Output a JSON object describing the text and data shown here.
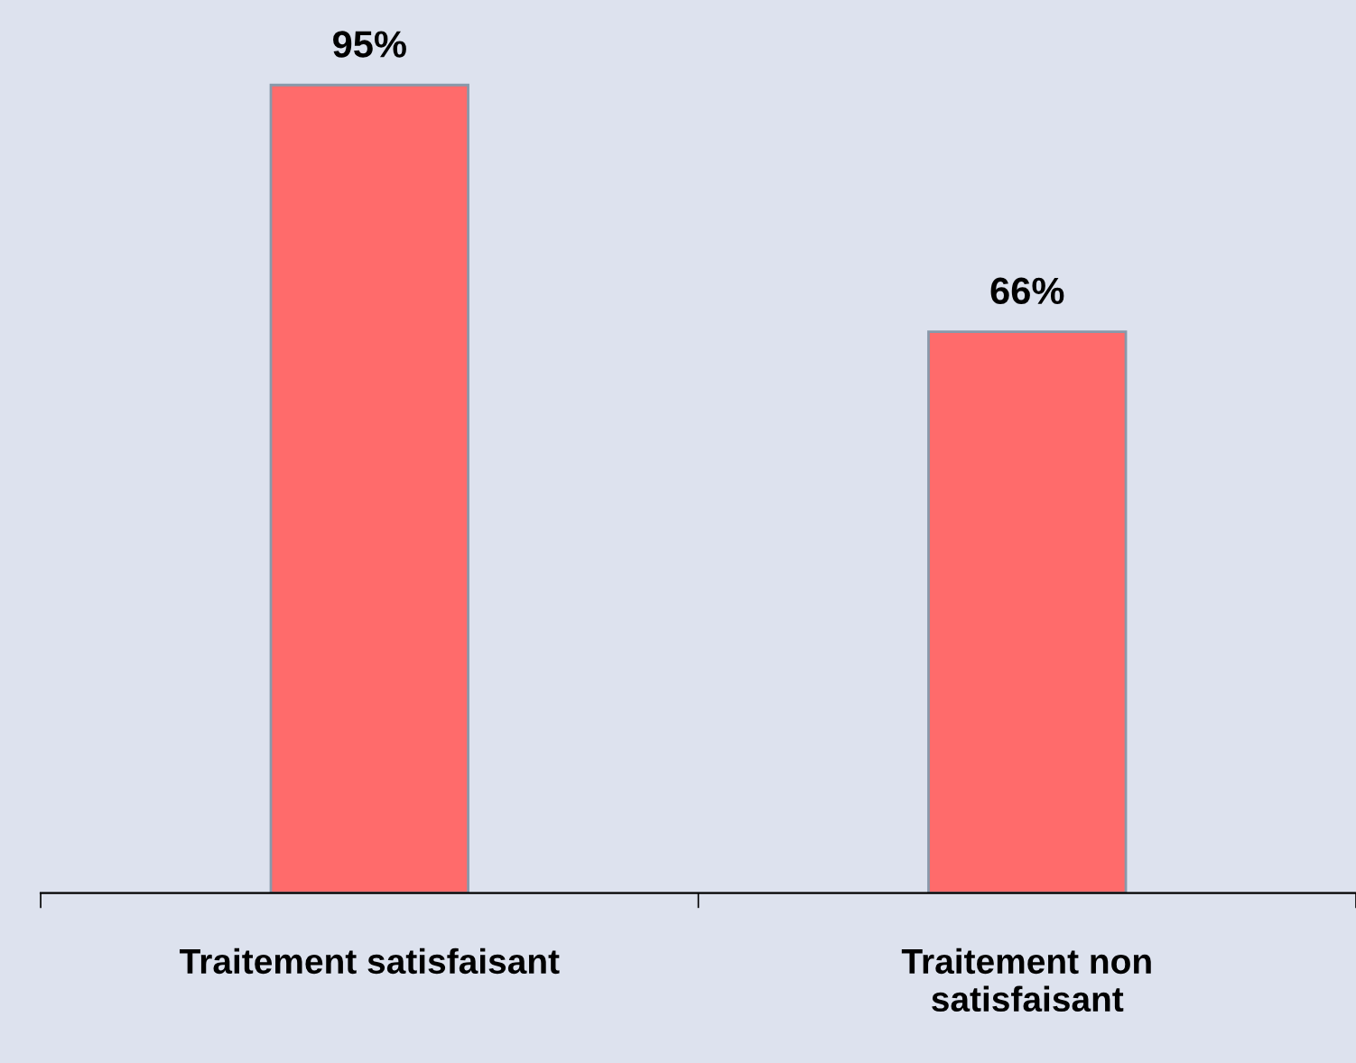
{
  "chart_data": {
    "type": "bar",
    "categories": [
      "Traitement satisfaisant",
      "Traitement non\nsatisfaisant"
    ],
    "values": [
      95,
      66
    ],
    "color": "#ff6b6b",
    "value_labels": [
      "95%",
      "66%"
    ],
    "grid": false,
    "legend": false
  }
}
